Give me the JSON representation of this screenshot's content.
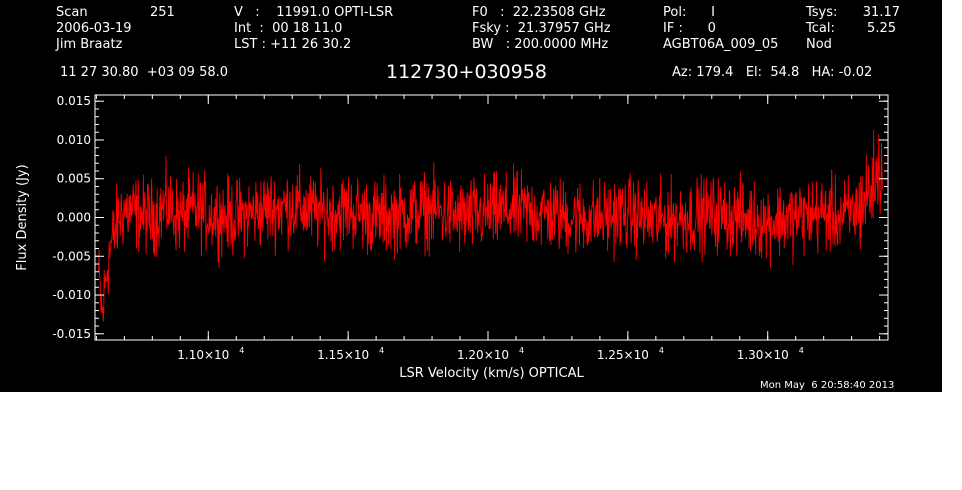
{
  "header": {
    "col1": {
      "scan_label": "Scan",
      "scan_value": "251",
      "date": "2006-03-19",
      "observer": "Jim Braatz"
    },
    "col2": {
      "v_line": "V   :    11991.0 OPTI-LSR",
      "int_line": "Int  :  00 18 11.0",
      "lst_line": "LST : +11 26 30.2"
    },
    "col3": {
      "f0_line": "F0   :  22.23508 GHz",
      "fsky_line": "Fsky :  21.37957 GHz",
      "bw_line": "BW   : 200.0000 MHz"
    },
    "col4": {
      "pol_line": "Pol:      I",
      "if_line": "IF :      0",
      "project": "AGBT06A_009_05"
    },
    "col5": {
      "tsys_label": "Tsys:",
      "tsys_value": "31.17",
      "tcal_label": "Tcal:",
      "tcal_value": "5.25",
      "mode": "Nod"
    },
    "coords": "11 27 30.80  +03 09 58.0",
    "source": "112730+030958",
    "pointing": "Az: 179.4   El:  54.8   HA: -0.02"
  },
  "timestamp": "Mon May  6 20:58:40 2013",
  "colors": {
    "background": "#000000",
    "axes": "#ffffff",
    "series": "#ff0000"
  },
  "chart_data": {
    "type": "line",
    "title": "112730+030958",
    "xlabel": "LSR Velocity (km/s) OPTICAL",
    "ylabel": "Flux Density (Jy)",
    "xlim": [
      10595,
      13430
    ],
    "ylim": [
      -0.0158,
      0.0158
    ],
    "y_ticks": [
      -0.015,
      -0.01,
      -0.005,
      0.0,
      0.005,
      0.01,
      0.015
    ],
    "y_tick_labels": [
      "-0.015",
      "-0.010",
      "-0.005",
      "0.000",
      "0.005",
      "0.010",
      "0.015"
    ],
    "x_ticks": [
      11000,
      11500,
      12000,
      12500,
      13000
    ],
    "x_tick_labels": [
      "1.10×10",
      "1.15×10",
      "1.20×10",
      "1.25×10",
      "1.30×10"
    ],
    "x_tick_exponent": "4",
    "series": [
      {
        "x": [
          10608,
          10615,
          10622,
          10630,
          10640,
          10650,
          10665,
          10680,
          10700,
          10750,
          10800,
          10850,
          10900,
          10950,
          11000,
          11100,
          11200,
          11300,
          11400,
          11500,
          11600,
          11700,
          11800,
          11900,
          12000,
          12100,
          12200,
          12300,
          12400,
          12500,
          12600,
          12700,
          12800,
          12900,
          13000,
          13100,
          13200,
          13250,
          13300,
          13320,
          13340,
          13360,
          13380,
          13400,
          13410
        ],
        "y": [
          -0.0075,
          -0.0105,
          -0.013,
          -0.009,
          -0.006,
          -0.004,
          -0.002,
          0.0,
          0.001,
          0.0005,
          0.0,
          0.0015,
          0.0,
          0.001,
          0.0005,
          0.0,
          0.001,
          0.0015,
          0.0005,
          0.001,
          0.0,
          0.0005,
          0.001,
          0.0,
          0.0005,
          0.001,
          0.0005,
          0.0,
          0.0,
          0.0005,
          -0.0005,
          0.0,
          0.0005,
          0.0,
          -0.0005,
          0.0,
          0.0005,
          0.0,
          0.0005,
          0.001,
          0.002,
          0.003,
          0.0045,
          0.006,
          0.0075
        ]
      }
    ]
  }
}
